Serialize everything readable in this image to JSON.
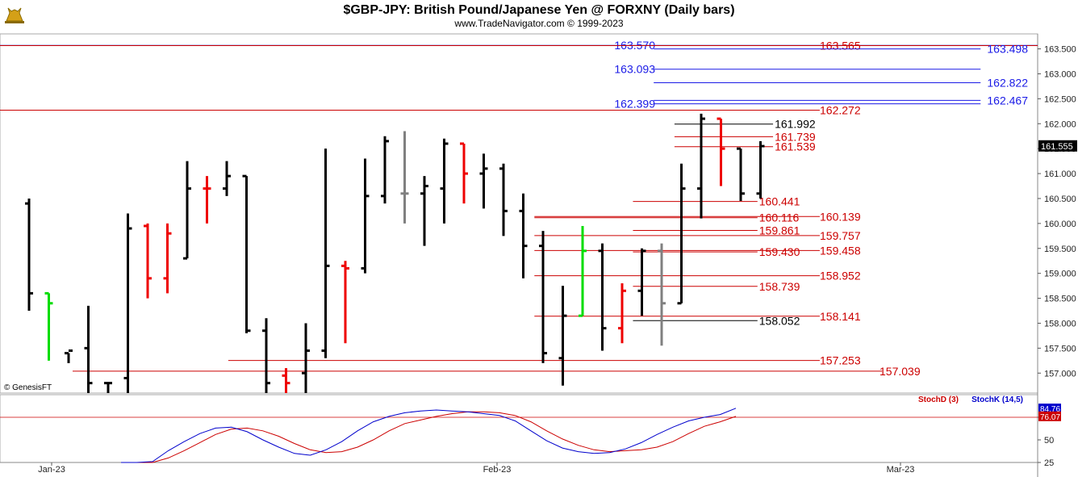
{
  "header": {
    "title": "$GBP-JPY:  British Pound/Japanese Yen @ FORXNY  (Daily bars)",
    "subtitle": "www.TradeNavigator.com © 1999-2023",
    "watermark": "© GenesisFT",
    "logo_icon": "bull-icon"
  },
  "colors": {
    "up": "#000000",
    "down": "#ee0000",
    "neutral": "#808080",
    "highlight": "#00dd00",
    "resistance": "#cc0000",
    "projection": "#1a1ae6",
    "stochK": "#0000cc",
    "stochD": "#cc0000"
  },
  "chart_data": [
    {
      "type": "ohlc",
      "price_ylim": [
        156.6,
        163.8
      ],
      "y_ticks": [
        "157.000",
        "157.500",
        "158.000",
        "158.500",
        "159.000",
        "159.500",
        "160.000",
        "160.500",
        "161.000",
        "161.500",
        "162.000",
        "162.500",
        "163.000",
        "163.500"
      ],
      "last_price": "161.555",
      "x_ticks": [
        "Jan-23",
        "Feb-23",
        "Mar-23"
      ],
      "bars": [
        {
          "o": 160.4,
          "h": 160.5,
          "l": 158.25,
          "c": 158.6,
          "col": "up"
        },
        {
          "o": 158.6,
          "h": 158.6,
          "l": 157.25,
          "c": 158.4,
          "col": "highlight"
        },
        {
          "o": 157.4,
          "h": 157.4,
          "l": 157.2,
          "c": 157.45,
          "col": "up"
        },
        {
          "o": 157.5,
          "h": 158.35,
          "l": 156.6,
          "c": 156.8,
          "col": "up"
        },
        {
          "o": 156.8,
          "h": 156.8,
          "l": 156.6,
          "c": 156.8,
          "col": "up"
        },
        {
          "o": 156.9,
          "h": 160.2,
          "l": 156.6,
          "c": 159.9,
          "col": "up"
        },
        {
          "o": 159.95,
          "h": 160.0,
          "l": 158.5,
          "c": 158.9,
          "col": "down"
        },
        {
          "o": 158.9,
          "h": 160.0,
          "l": 158.6,
          "c": 159.8,
          "col": "down"
        },
        {
          "o": 159.3,
          "h": 161.25,
          "l": 159.3,
          "c": 160.7,
          "col": "up"
        },
        {
          "o": 160.7,
          "h": 160.95,
          "l": 160.0,
          "c": 160.7,
          "col": "down"
        },
        {
          "o": 160.7,
          "h": 161.25,
          "l": 160.55,
          "c": 160.95,
          "col": "up"
        },
        {
          "o": 160.95,
          "h": 160.95,
          "l": 157.8,
          "c": 157.85,
          "col": "up"
        },
        {
          "o": 157.85,
          "h": 158.1,
          "l": 156.6,
          "c": 156.8,
          "col": "up"
        },
        {
          "o": 156.95,
          "h": 157.1,
          "l": 156.6,
          "c": 156.8,
          "col": "down"
        },
        {
          "o": 157.0,
          "h": 158.0,
          "l": 156.6,
          "c": 157.45,
          "col": "up"
        },
        {
          "o": 157.45,
          "h": 161.5,
          "l": 157.3,
          "c": 159.15,
          "col": "up"
        },
        {
          "o": 159.15,
          "h": 159.25,
          "l": 157.6,
          "c": 159.1,
          "col": "down"
        },
        {
          "o": 159.1,
          "h": 161.3,
          "l": 159.0,
          "c": 160.55,
          "col": "up"
        },
        {
          "o": 160.55,
          "h": 161.75,
          "l": 160.4,
          "c": 161.65,
          "col": "up"
        },
        {
          "o": 160.6,
          "h": 161.85,
          "l": 160.0,
          "c": 160.6,
          "col": "neutral"
        },
        {
          "o": 160.6,
          "h": 160.95,
          "l": 159.55,
          "c": 160.75,
          "col": "up"
        },
        {
          "o": 160.7,
          "h": 161.7,
          "l": 160.0,
          "c": 161.6,
          "col": "up"
        },
        {
          "o": 161.6,
          "h": 161.6,
          "l": 160.4,
          "c": 161.0,
          "col": "down"
        },
        {
          "o": 161.0,
          "h": 161.4,
          "l": 160.3,
          "c": 161.1,
          "col": "up"
        },
        {
          "o": 161.1,
          "h": 161.2,
          "l": 159.75,
          "c": 160.25,
          "col": "up"
        },
        {
          "o": 160.25,
          "h": 160.6,
          "l": 158.9,
          "c": 159.55,
          "col": "up"
        },
        {
          "o": 159.55,
          "h": 159.85,
          "l": 157.2,
          "c": 157.4,
          "col": "up"
        },
        {
          "o": 157.3,
          "h": 158.75,
          "l": 156.75,
          "c": 158.15,
          "col": "up"
        },
        {
          "o": 158.15,
          "h": 159.95,
          "l": 158.15,
          "c": 159.45,
          "col": "highlight"
        },
        {
          "o": 159.45,
          "h": 159.6,
          "l": 157.45,
          "c": 157.9,
          "col": "up"
        },
        {
          "o": 157.9,
          "h": 158.8,
          "l": 157.6,
          "c": 158.65,
          "col": "down"
        },
        {
          "o": 158.65,
          "h": 159.5,
          "l": 158.15,
          "c": 159.45,
          "col": "up"
        },
        {
          "o": 159.45,
          "h": 159.6,
          "l": 157.55,
          "c": 158.4,
          "col": "neutral"
        },
        {
          "o": 158.4,
          "h": 161.2,
          "l": 158.4,
          "c": 160.7,
          "col": "up"
        },
        {
          "o": 160.7,
          "h": 162.2,
          "l": 160.1,
          "c": 162.1,
          "col": "up"
        },
        {
          "o": 162.1,
          "h": 162.1,
          "l": 160.75,
          "c": 161.5,
          "col": "down"
        },
        {
          "o": 161.5,
          "h": 161.5,
          "l": 160.45,
          "c": 160.6,
          "col": "up"
        },
        {
          "o": 160.6,
          "h": 161.65,
          "l": 160.5,
          "c": 161.55,
          "col": "up"
        }
      ],
      "levels": [
        {
          "label": "163.570",
          "value": 163.57,
          "color": "#1a1ae6",
          "side": "left",
          "x0": 0.0,
          "x1": 1.0
        },
        {
          "label": "163.565",
          "value": 163.565,
          "color": "#cc0000",
          "side": "mid",
          "x0": 0.0,
          "x1": 1.0
        },
        {
          "label": "163.498",
          "value": 163.498,
          "color": "#1a1ae6",
          "side": "right",
          "x0": 0.63,
          "x1": 0.945
        },
        {
          "label": "163.093",
          "value": 163.093,
          "color": "#1a1ae6",
          "side": "left",
          "x0": 0.63,
          "x1": 0.945
        },
        {
          "label": "162.822",
          "value": 162.822,
          "color": "#1a1ae6",
          "side": "right",
          "x0": 0.63,
          "x1": 0.945
        },
        {
          "label": "162.467",
          "value": 162.467,
          "color": "#1a1ae6",
          "side": "right",
          "x0": 0.63,
          "x1": 0.945
        },
        {
          "label": "162.399",
          "value": 162.399,
          "color": "#1a1ae6",
          "side": "left",
          "x0": 0.63,
          "x1": 0.945
        },
        {
          "label": "162.272",
          "value": 162.272,
          "color": "#cc0000",
          "side": "mid",
          "x0": 0.0,
          "x1": 0.79
        },
        {
          "label": "161.992",
          "value": 161.992,
          "color": "#000000",
          "side": "near",
          "x0": 0.65,
          "x1": 0.745
        },
        {
          "label": "161.739",
          "value": 161.739,
          "color": "#cc0000",
          "side": "near",
          "x0": 0.65,
          "x1": 0.745
        },
        {
          "label": "161.539",
          "value": 161.539,
          "color": "#cc0000",
          "side": "near",
          "x0": 0.65,
          "x1": 0.745
        },
        {
          "label": "160.441",
          "value": 160.441,
          "color": "#cc0000",
          "side": "near",
          "x0": 0.61,
          "x1": 0.73
        },
        {
          "label": "160.116",
          "value": 160.116,
          "color": "#cc0000",
          "side": "near",
          "x0": 0.515,
          "x1": 0.73
        },
        {
          "label": "160.139",
          "value": 160.139,
          "color": "#cc0000",
          "side": "mid",
          "x0": 0.515,
          "x1": 0.79
        },
        {
          "label": "159.861",
          "value": 159.861,
          "color": "#cc0000",
          "side": "near",
          "x0": 0.61,
          "x1": 0.73
        },
        {
          "label": "159.757",
          "value": 159.757,
          "color": "#cc0000",
          "side": "mid",
          "x0": 0.515,
          "x1": 0.79
        },
        {
          "label": "159.430",
          "value": 159.43,
          "color": "#cc0000",
          "side": "near",
          "x0": 0.61,
          "x1": 0.73
        },
        {
          "label": "159.458",
          "value": 159.458,
          "color": "#cc0000",
          "side": "mid",
          "x0": 0.515,
          "x1": 0.79
        },
        {
          "label": "158.952",
          "value": 158.952,
          "color": "#cc0000",
          "side": "mid",
          "x0": 0.515,
          "x1": 0.79
        },
        {
          "label": "158.739",
          "value": 158.739,
          "color": "#cc0000",
          "side": "near",
          "x0": 0.61,
          "x1": 0.73
        },
        {
          "label": "158.141",
          "value": 158.141,
          "color": "#cc0000",
          "side": "mid",
          "x0": 0.515,
          "x1": 0.79
        },
        {
          "label": "158.052",
          "value": 158.052,
          "color": "#000000",
          "side": "near",
          "x0": 0.61,
          "x1": 0.73
        },
        {
          "label": "157.253",
          "value": 157.253,
          "color": "#cc0000",
          "side": "mid",
          "x0": 0.22,
          "x1": 0.79
        },
        {
          "label": "157.039",
          "value": 157.039,
          "color": "#cc0000",
          "side": "far",
          "x0": 0.07,
          "x1": 0.85
        }
      ]
    },
    {
      "type": "line",
      "ylim": [
        25,
        100
      ],
      "y_ticks": [
        "75",
        "50",
        "25"
      ],
      "reference_line": 75,
      "last_values": {
        "stochK": "84.76",
        "stochD": "76.07"
      },
      "series": [
        {
          "name": "StochD (3)",
          "color": "#cc0000",
          "values": [
            18,
            20,
            24,
            30,
            38,
            47,
            56,
            62,
            63,
            60,
            54,
            46,
            39,
            36,
            37,
            42,
            50,
            60,
            68,
            72,
            76,
            79,
            81,
            81,
            80,
            77,
            70,
            60,
            51,
            44,
            39,
            37,
            38,
            39,
            42,
            48,
            57,
            65,
            70,
            76
          ]
        },
        {
          "name": "StochK (14,5)",
          "color": "#0000cc",
          "values": [
            14,
            18,
            26,
            38,
            48,
            57,
            63,
            64,
            59,
            50,
            42,
            35,
            33,
            39,
            48,
            60,
            70,
            76,
            80,
            82,
            83,
            82,
            81,
            79,
            77,
            71,
            60,
            49,
            41,
            37,
            35,
            36,
            40,
            47,
            56,
            64,
            71,
            75,
            78,
            85
          ]
        }
      ]
    }
  ]
}
